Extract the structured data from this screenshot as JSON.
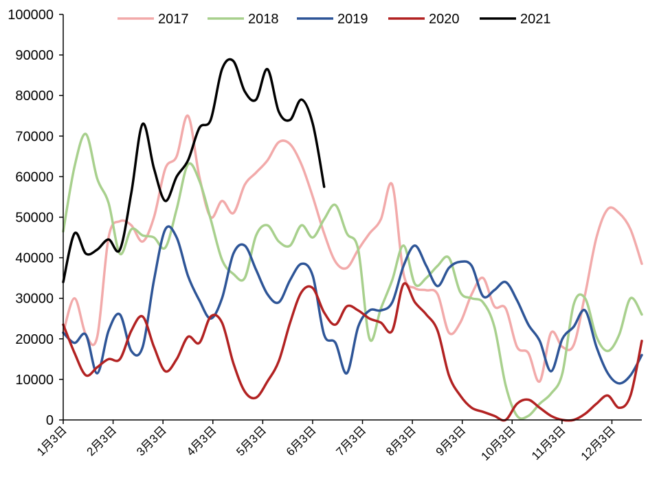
{
  "chart_data": {
    "type": "line",
    "title": "",
    "xlabel": "",
    "ylabel": "",
    "ylim": [
      0,
      100000
    ],
    "y_ticks": [
      "0",
      "10000",
      "20000",
      "30000",
      "40000",
      "50000",
      "60000",
      "70000",
      "80000",
      "90000",
      "100000"
    ],
    "x_range": [
      0,
      58
    ],
    "x_ticks": [
      {
        "label": "1月3日",
        "x": 0
      },
      {
        "label": "2月3日",
        "x": 5
      },
      {
        "label": "3月3日",
        "x": 10
      },
      {
        "label": "4月3日",
        "x": 15
      },
      {
        "label": "5月3日",
        "x": 20
      },
      {
        "label": "6月3日",
        "x": 25
      },
      {
        "label": "7月3日",
        "x": 30
      },
      {
        "label": "8月3日",
        "x": 35
      },
      {
        "label": "9月3日",
        "x": 40
      },
      {
        "label": "10月3日",
        "x": 45
      },
      {
        "label": "11月3日",
        "x": 50
      },
      {
        "label": "12月3日",
        "x": 55
      }
    ],
    "legend_position": "top",
    "series": [
      {
        "name": "2017",
        "color": "#f2aaaa",
        "values": [
          21500,
          30000,
          21000,
          20500,
          45000,
          49000,
          48000,
          44000,
          50000,
          62000,
          65000,
          75000,
          60000,
          50000,
          54000,
          51000,
          58000,
          61000,
          64000,
          68500,
          68000,
          63000,
          55000,
          46000,
          39000,
          37500,
          42000,
          46000,
          49500,
          58000,
          36000,
          32500,
          32000,
          31000,
          21500,
          24000,
          31000,
          35000,
          28000,
          27500,
          18000,
          16500,
          9500,
          21500,
          18000,
          18500,
          31000,
          45000,
          52000,
          51000,
          47000,
          38500
        ]
      },
      {
        "name": "2018",
        "color": "#a8d08d",
        "values": [
          46500,
          62500,
          70500,
          59500,
          53500,
          41000,
          47000,
          45500,
          45000,
          42500,
          52000,
          63000,
          59000,
          49500,
          39500,
          36000,
          35000,
          45500,
          48000,
          44000,
          43000,
          48000,
          45000,
          49500,
          53000,
          46000,
          42000,
          20000,
          27500,
          34500,
          43000,
          33500,
          35000,
          38000,
          40000,
          31500,
          30000,
          29000,
          23000,
          8500,
          1000,
          1000,
          4000,
          6500,
          11500,
          28500,
          30000,
          20500,
          17000,
          21000,
          30000,
          26000
        ]
      },
      {
        "name": "2019",
        "color": "#2e5597",
        "values": [
          21500,
          19000,
          21000,
          11500,
          22000,
          26000,
          17000,
          18000,
          34500,
          47000,
          45000,
          35500,
          29500,
          25000,
          30000,
          41000,
          43000,
          37000,
          31000,
          29000,
          34500,
          38500,
          35500,
          21000,
          19000,
          11500,
          23000,
          27000,
          27000,
          29000,
          38000,
          43000,
          38000,
          33000,
          37500,
          39000,
          38000,
          30500,
          32000,
          34000,
          29500,
          23500,
          19500,
          12000,
          20000,
          23000,
          27000,
          18000,
          11500,
          9000,
          11000,
          16000
        ]
      },
      {
        "name": "2020",
        "color": "#b22222",
        "values": [
          23500,
          16500,
          11000,
          13000,
          15000,
          15000,
          22000,
          25500,
          18000,
          12000,
          15000,
          20500,
          19000,
          25500,
          24000,
          14000,
          7000,
          5500,
          9500,
          14500,
          24000,
          31500,
          32500,
          26500,
          23500,
          28000,
          27000,
          25000,
          24000,
          22000,
          33500,
          29000,
          26000,
          22000,
          11000,
          6000,
          3000,
          2000,
          1000,
          0,
          4000,
          5000,
          3000,
          1000,
          0,
          0,
          1500,
          4000,
          6000,
          3000,
          6000,
          19500
        ]
      },
      {
        "name": "2021",
        "color": "#000000",
        "values": [
          34000,
          46000,
          41000,
          42000,
          44500,
          42000,
          56000,
          73000,
          62000,
          54000,
          60000,
          64000,
          72000,
          74000,
          86500,
          88500,
          81000,
          79000,
          86500,
          76000,
          74000,
          79000,
          73000,
          57500
        ]
      }
    ]
  }
}
